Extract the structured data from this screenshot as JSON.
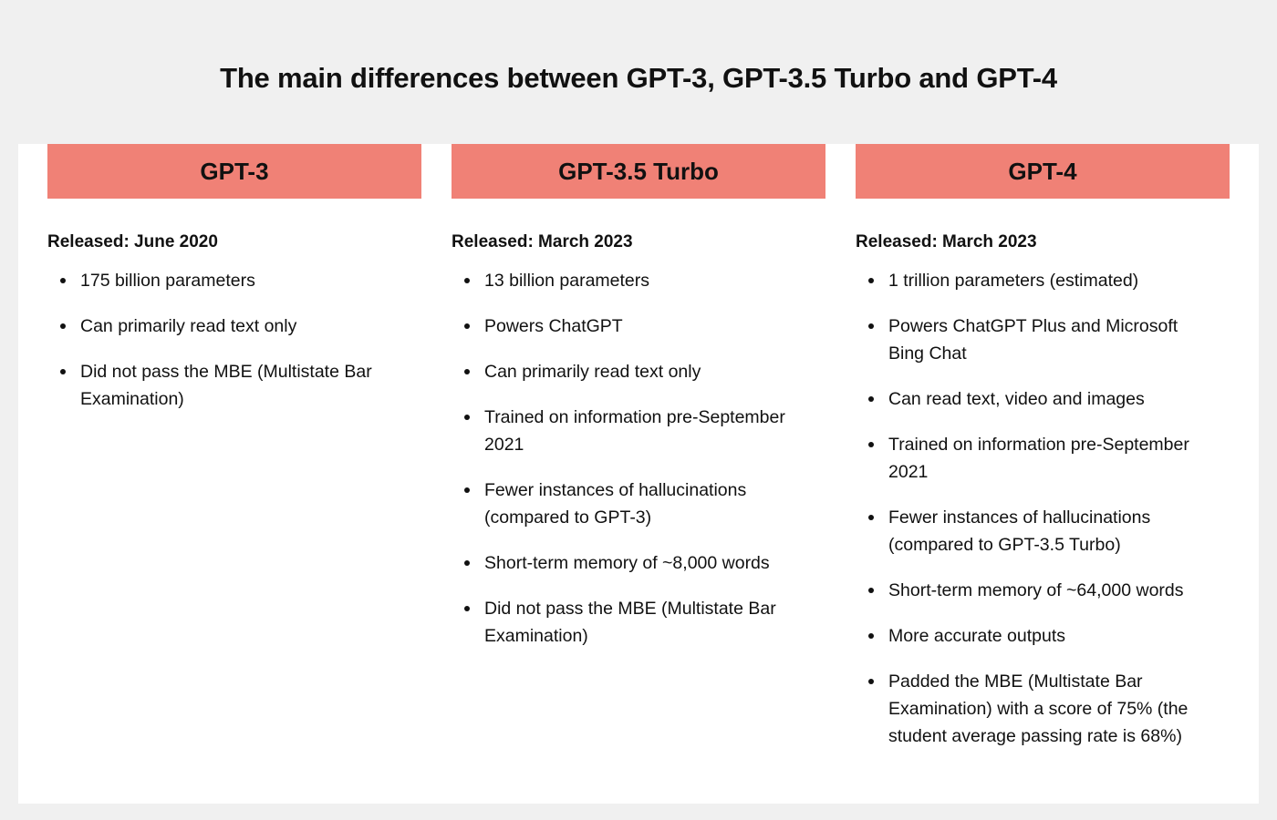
{
  "title": "The main differences between GPT-3, GPT-3.5 Turbo and GPT-4",
  "colors": {
    "page_background": "#f0f0f0",
    "panel_background": "#ffffff",
    "header_accent": "#f08176",
    "text": "#111111"
  },
  "columns": [
    {
      "name": "GPT-3",
      "released": "Released: June 2020",
      "features": [
        "175 billion parameters",
        "Can primarily read text only",
        "Did not pass the MBE (Multistate Bar Examination)"
      ]
    },
    {
      "name": "GPT-3.5 Turbo",
      "released": "Released: March 2023",
      "features": [
        "13 billion parameters",
        "Powers ChatGPT",
        "Can primarily read text only",
        "Trained on information pre-September 2021",
        "Fewer instances of hallucinations (compared to GPT-3)",
        "Short-term memory of ~8,000 words",
        "Did not pass the MBE (Multistate Bar Examination)"
      ]
    },
    {
      "name": "GPT-4",
      "released": "Released: March 2023",
      "features": [
        "1 trillion parameters (estimated)",
        "Powers ChatGPT Plus and Microsoft Bing Chat",
        "Can read text, video and images",
        "Trained on information pre-September 2021",
        "Fewer instances of hallucinations (compared to GPT-3.5 Turbo)",
        "Short-term memory of ~64,000 words",
        "More accurate outputs",
        "Padded the MBE (Multistate Bar Examination) with a score of 75% (the student average passing rate is 68%)"
      ]
    }
  ]
}
